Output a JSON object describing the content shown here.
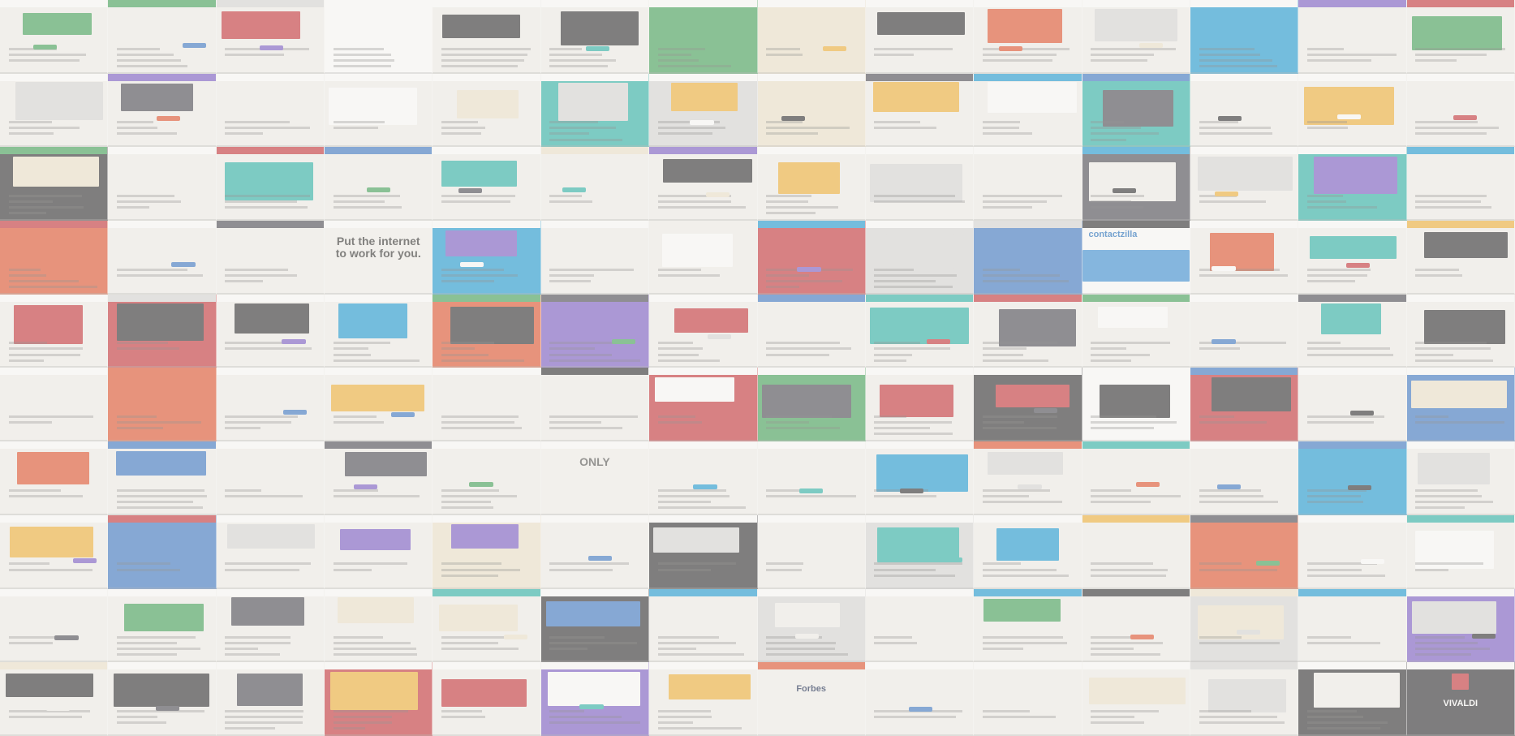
{
  "texts": [
    {
      "row": 3,
      "col": 3,
      "text": "Put the internet to work for you.",
      "color": "#333333",
      "variant": "light-big"
    },
    {
      "row": 3,
      "col": 10,
      "text": "contactzilla",
      "color": "#1f6fbf",
      "variant": "blue-band"
    },
    {
      "row": 6,
      "col": 5,
      "text": "ONLY",
      "color": "#555555",
      "variant": "light-big"
    },
    {
      "row": 9,
      "col": 7,
      "text": "Forbes",
      "color": "#1d2b52",
      "variant": "light"
    },
    {
      "row": 9,
      "col": 13,
      "text": "VIVALDI",
      "color": "#ffffff",
      "variant": "red-dark"
    }
  ],
  "palette": [
    "#f3f2ee",
    "#ffffff",
    "#3b78c7",
    "#2f2f32",
    "#d9d9d9",
    "#e2542f",
    "#43a35a",
    "#f2b13a",
    "#7b5cc9",
    "#1c9bd6",
    "#c7353b",
    "#4a4a55",
    "#f0e6cf",
    "#2bb3a9"
  ]
}
